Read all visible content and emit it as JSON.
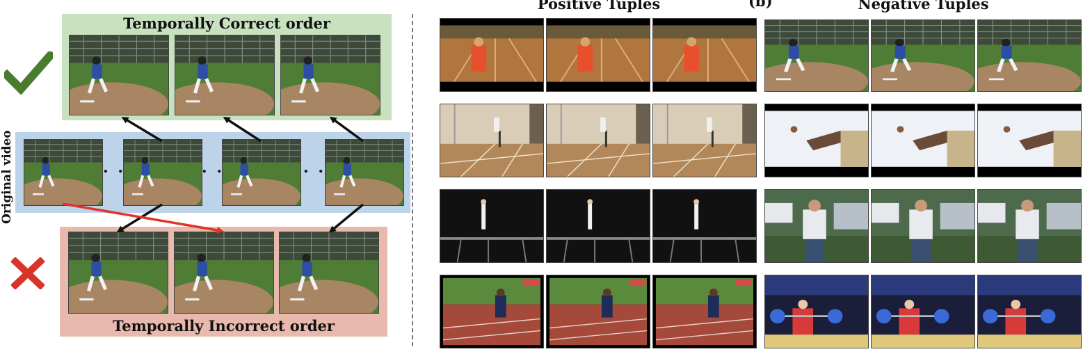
{
  "panel_a": {
    "title_correct": "Temporally Correct order",
    "title_incorrect": "Temporally Incorrect order",
    "side_label": "Original video",
    "ellipsis": ". ."
  },
  "panel_b": {
    "label": "(b)",
    "positive_title": "Positive Tuples",
    "negative_title": "Negative Tuples"
  },
  "icons": {
    "correct": "check-mark-icon",
    "incorrect": "cross-mark-icon"
  },
  "colors": {
    "correct_band": "#c8e2c0",
    "original_band": "#bdd3ea",
    "incorrect_band": "#e9b9ae",
    "check": "#4a7c2e",
    "cross": "#d9342b"
  }
}
